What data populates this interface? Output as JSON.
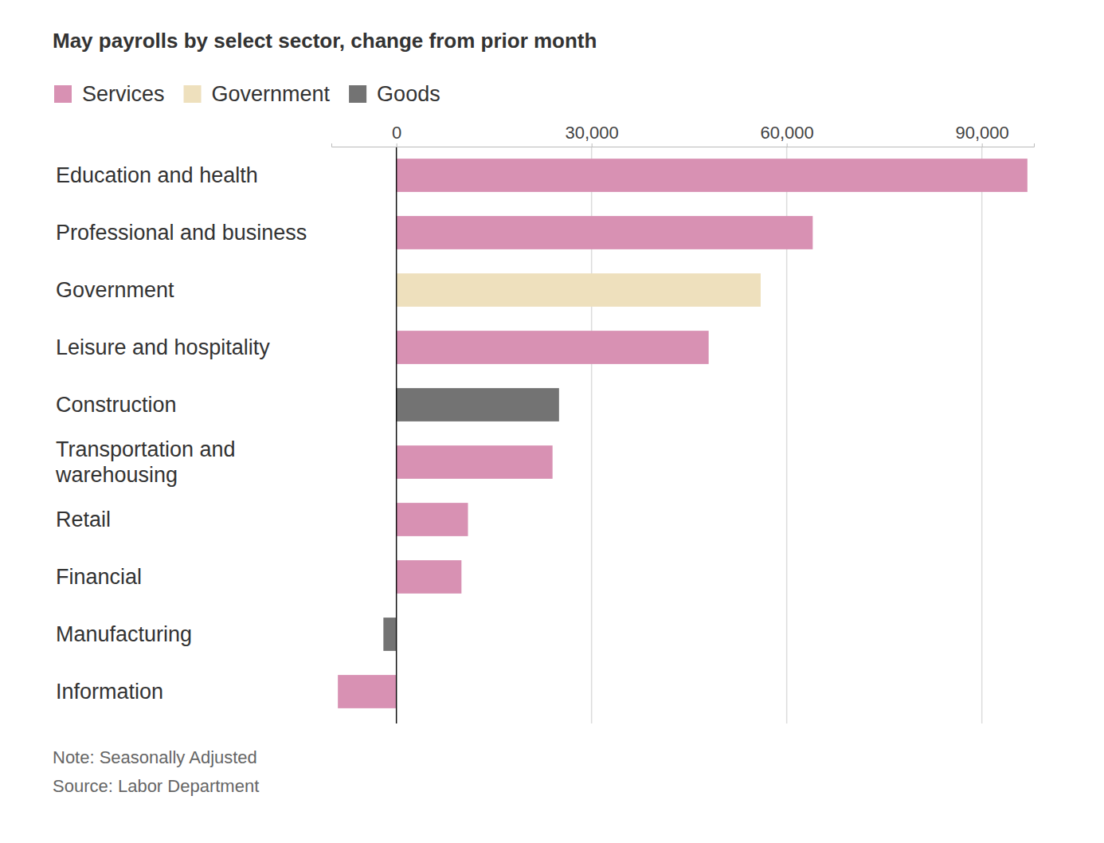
{
  "chart_data": {
    "type": "bar",
    "orientation": "horizontal",
    "title": "May payrolls by select sector, change from prior month",
    "categories": [
      "Education and health",
      "Professional and business",
      "Government",
      "Leisure and hospitality",
      "Construction",
      "Transportation and warehousing",
      "Retail",
      "Financial",
      "Manufacturing",
      "Information"
    ],
    "series": [
      {
        "name": "Services",
        "color": "#d891b3",
        "values": [
          97000,
          64000,
          null,
          48000,
          null,
          24000,
          11000,
          10000,
          null,
          -9000
        ]
      },
      {
        "name": "Government",
        "color": "#eee0bd",
        "values": [
          null,
          null,
          56000,
          null,
          null,
          null,
          null,
          null,
          null,
          null
        ]
      },
      {
        "name": "Goods",
        "color": "#737373",
        "values": [
          null,
          null,
          null,
          null,
          25000,
          null,
          null,
          null,
          -2000,
          null
        ]
      }
    ],
    "xlim": [
      -10000,
      98000
    ],
    "xticks": [
      0,
      {
        "value": 30000,
        "label": "30,000"
      },
      {
        "value": 60000,
        "label": "60,000"
      },
      {
        "value": 90000,
        "label": "90,000"
      }
    ],
    "grid": true,
    "legend": "top-left",
    "note": "Note: Seasonally Adjusted",
    "source": "Source: Labor Department"
  }
}
